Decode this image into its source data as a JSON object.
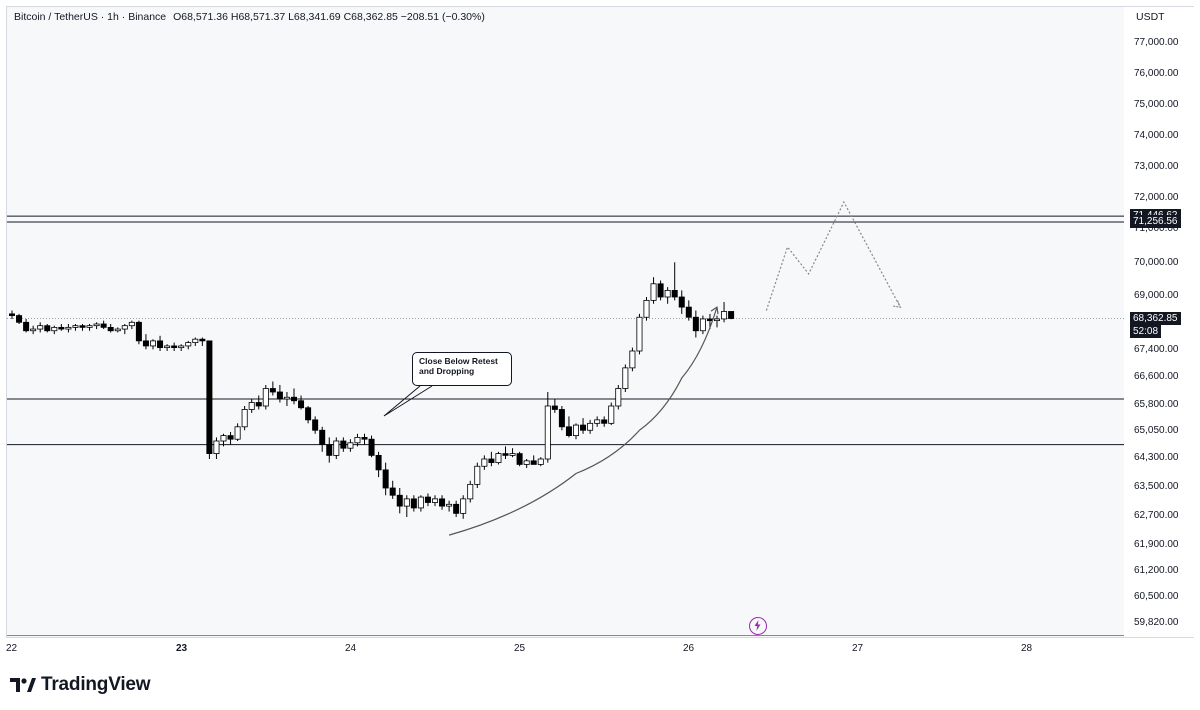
{
  "header": {
    "symbol": "Bitcoin / TetherUS · 1h · Binance",
    "open": "O68,571.36",
    "high": "H68,571.37",
    "low": "L68,341.69",
    "close": "C68,362.85",
    "change": "−208.51 (−0.30%)"
  },
  "price_scale": {
    "currency": "USDT",
    "ticks": [
      "77,000.00",
      "76,000.00",
      "75,000.00",
      "74,000.00",
      "73,000.00",
      "72,000.00",
      "71,000.00",
      "70,000.00",
      "69,000.00",
      "67,400.00",
      "66,600.00",
      "65,800.00",
      "65,050.00",
      "64,300.00",
      "63,500.00",
      "62,700.00",
      "61,900.00",
      "61,200.00",
      "60,500.00",
      "59,820.00"
    ]
  },
  "levels": {
    "resistance_upper": "71,446.62",
    "resistance_lower": "71,256.56",
    "support_upper": 66000,
    "support_lower": 64700
  },
  "last_price": {
    "value": "68,362.85",
    "countdown": "52:08"
  },
  "annotation": {
    "line1": "Close Below Retest",
    "line2": "and Dropping"
  },
  "time_axis": {
    "labels": [
      "22",
      "23",
      "24",
      "25",
      "26",
      "27",
      "28"
    ],
    "bold": [
      "23"
    ]
  },
  "logo": {
    "text": "TradingView"
  },
  "colors": {
    "bull": "#ffffff",
    "bear": "#000000",
    "line": "#131722",
    "dotted": "#888888",
    "accent": "#9c27b0"
  },
  "chart_data": {
    "type": "candlestick",
    "candles": [
      {
        "o": 68500,
        "h": 68600,
        "l": 68350,
        "c": 68450
      },
      {
        "o": 68450,
        "h": 68500,
        "l": 68200,
        "c": 68250
      },
      {
        "o": 68250,
        "h": 68350,
        "l": 67950,
        "c": 68000
      },
      {
        "o": 68000,
        "h": 68150,
        "l": 67900,
        "c": 68050
      },
      {
        "o": 68050,
        "h": 68250,
        "l": 67950,
        "c": 68150
      },
      {
        "o": 68150,
        "h": 68200,
        "l": 67950,
        "c": 68000
      },
      {
        "o": 68000,
        "h": 68150,
        "l": 67900,
        "c": 68100
      },
      {
        "o": 68100,
        "h": 68200,
        "l": 68000,
        "c": 68050
      },
      {
        "o": 68050,
        "h": 68200,
        "l": 67950,
        "c": 68100
      },
      {
        "o": 68100,
        "h": 68200,
        "l": 68000,
        "c": 68150
      },
      {
        "o": 68150,
        "h": 68200,
        "l": 68000,
        "c": 68100
      },
      {
        "o": 68100,
        "h": 68200,
        "l": 68000,
        "c": 68150
      },
      {
        "o": 68150,
        "h": 68250,
        "l": 68050,
        "c": 68200
      },
      {
        "o": 68200,
        "h": 68300,
        "l": 68050,
        "c": 68100
      },
      {
        "o": 68100,
        "h": 68200,
        "l": 67950,
        "c": 68000
      },
      {
        "o": 68000,
        "h": 68100,
        "l": 67950,
        "c": 68050
      },
      {
        "o": 68050,
        "h": 68200,
        "l": 67900,
        "c": 68150
      },
      {
        "o": 68150,
        "h": 68300,
        "l": 68050,
        "c": 68250
      },
      {
        "o": 68250,
        "h": 68300,
        "l": 67600,
        "c": 67700
      },
      {
        "o": 67700,
        "h": 67900,
        "l": 67450,
        "c": 67550
      },
      {
        "o": 67550,
        "h": 67750,
        "l": 67450,
        "c": 67700
      },
      {
        "o": 67700,
        "h": 67850,
        "l": 67400,
        "c": 67500
      },
      {
        "o": 67500,
        "h": 67600,
        "l": 67400,
        "c": 67550
      },
      {
        "o": 67550,
        "h": 67650,
        "l": 67400,
        "c": 67500
      },
      {
        "o": 67500,
        "h": 67600,
        "l": 67400,
        "c": 67550
      },
      {
        "o": 67550,
        "h": 67700,
        "l": 67450,
        "c": 67650
      },
      {
        "o": 67650,
        "h": 67800,
        "l": 67550,
        "c": 67750
      },
      {
        "o": 67750,
        "h": 67800,
        "l": 67550,
        "c": 67700
      },
      {
        "o": 67700,
        "h": 67700,
        "l": 64300,
        "c": 64450
      },
      {
        "o": 64450,
        "h": 64900,
        "l": 64300,
        "c": 64800
      },
      {
        "o": 64800,
        "h": 65000,
        "l": 64650,
        "c": 64950
      },
      {
        "o": 64950,
        "h": 65050,
        "l": 64700,
        "c": 64850
      },
      {
        "o": 64850,
        "h": 65300,
        "l": 64800,
        "c": 65200
      },
      {
        "o": 65200,
        "h": 65800,
        "l": 65100,
        "c": 65700
      },
      {
        "o": 65700,
        "h": 66000,
        "l": 65600,
        "c": 65900
      },
      {
        "o": 65900,
        "h": 66100,
        "l": 65700,
        "c": 65800
      },
      {
        "o": 65800,
        "h": 66400,
        "l": 65700,
        "c": 66300
      },
      {
        "o": 66300,
        "h": 66500,
        "l": 66100,
        "c": 66200
      },
      {
        "o": 66200,
        "h": 66400,
        "l": 65900,
        "c": 66000
      },
      {
        "o": 66000,
        "h": 66200,
        "l": 65800,
        "c": 66050
      },
      {
        "o": 66050,
        "h": 66300,
        "l": 65850,
        "c": 65950
      },
      {
        "o": 65950,
        "h": 66100,
        "l": 65700,
        "c": 65750
      },
      {
        "o": 65750,
        "h": 65800,
        "l": 65300,
        "c": 65400
      },
      {
        "o": 65400,
        "h": 65500,
        "l": 65000,
        "c": 65100
      },
      {
        "o": 65100,
        "h": 65200,
        "l": 64500,
        "c": 64700
      },
      {
        "o": 64700,
        "h": 64900,
        "l": 64200,
        "c": 64400
      },
      {
        "o": 64400,
        "h": 64900,
        "l": 64300,
        "c": 64800
      },
      {
        "o": 64800,
        "h": 64900,
        "l": 64500,
        "c": 64600
      },
      {
        "o": 64600,
        "h": 64850,
        "l": 64500,
        "c": 64750
      },
      {
        "o": 64750,
        "h": 65000,
        "l": 64650,
        "c": 64900
      },
      {
        "o": 64900,
        "h": 65000,
        "l": 64700,
        "c": 64850
      },
      {
        "o": 64850,
        "h": 64950,
        "l": 64350,
        "c": 64400
      },
      {
        "o": 64400,
        "h": 64500,
        "l": 63800,
        "c": 64000
      },
      {
        "o": 64000,
        "h": 64200,
        "l": 63300,
        "c": 63500
      },
      {
        "o": 63500,
        "h": 63700,
        "l": 63200,
        "c": 63300
      },
      {
        "o": 63300,
        "h": 63500,
        "l": 62800,
        "c": 63000
      },
      {
        "o": 63000,
        "h": 63300,
        "l": 62700,
        "c": 63200
      },
      {
        "o": 63200,
        "h": 63300,
        "l": 62850,
        "c": 62950
      },
      {
        "o": 62950,
        "h": 63300,
        "l": 62850,
        "c": 63250
      },
      {
        "o": 63250,
        "h": 63350,
        "l": 63000,
        "c": 63100
      },
      {
        "o": 63100,
        "h": 63300,
        "l": 63000,
        "c": 63200
      },
      {
        "o": 63200,
        "h": 63300,
        "l": 62900,
        "c": 63000
      },
      {
        "o": 63000,
        "h": 63150,
        "l": 62850,
        "c": 63050
      },
      {
        "o": 63050,
        "h": 63150,
        "l": 62700,
        "c": 62800
      },
      {
        "o": 62800,
        "h": 63300,
        "l": 62650,
        "c": 63200
      },
      {
        "o": 63200,
        "h": 63700,
        "l": 63100,
        "c": 63600
      },
      {
        "o": 63600,
        "h": 64200,
        "l": 63500,
        "c": 64100
      },
      {
        "o": 64100,
        "h": 64400,
        "l": 64000,
        "c": 64300
      },
      {
        "o": 64300,
        "h": 64500,
        "l": 64100,
        "c": 64200
      },
      {
        "o": 64200,
        "h": 64500,
        "l": 64150,
        "c": 64450
      },
      {
        "o": 64450,
        "h": 64650,
        "l": 64300,
        "c": 64400
      },
      {
        "o": 64400,
        "h": 64600,
        "l": 64350,
        "c": 64450
      },
      {
        "o": 64450,
        "h": 64500,
        "l": 64100,
        "c": 64150
      },
      {
        "o": 64150,
        "h": 64300,
        "l": 64050,
        "c": 64250
      },
      {
        "o": 64250,
        "h": 64400,
        "l": 64150,
        "c": 64150
      },
      {
        "o": 64150,
        "h": 64350,
        "l": 64100,
        "c": 64300
      },
      {
        "o": 64300,
        "h": 66200,
        "l": 64200,
        "c": 65800
      },
      {
        "o": 65800,
        "h": 66000,
        "l": 65600,
        "c": 65700
      },
      {
        "o": 65700,
        "h": 65800,
        "l": 65100,
        "c": 65200
      },
      {
        "o": 65200,
        "h": 65500,
        "l": 64900,
        "c": 64950
      },
      {
        "o": 64950,
        "h": 65300,
        "l": 64850,
        "c": 65250
      },
      {
        "o": 65250,
        "h": 65450,
        "l": 65000,
        "c": 65100
      },
      {
        "o": 65100,
        "h": 65400,
        "l": 65000,
        "c": 65300
      },
      {
        "o": 65300,
        "h": 65500,
        "l": 65200,
        "c": 65400
      },
      {
        "o": 65400,
        "h": 65500,
        "l": 65200,
        "c": 65300
      },
      {
        "o": 65300,
        "h": 65900,
        "l": 65250,
        "c": 65800
      },
      {
        "o": 65800,
        "h": 66400,
        "l": 65700,
        "c": 66300
      },
      {
        "o": 66300,
        "h": 67000,
        "l": 66200,
        "c": 66900
      },
      {
        "o": 66900,
        "h": 67500,
        "l": 66800,
        "c": 67400
      },
      {
        "o": 67400,
        "h": 68500,
        "l": 67300,
        "c": 68400
      },
      {
        "o": 68400,
        "h": 69000,
        "l": 68300,
        "c": 68900
      },
      {
        "o": 68900,
        "h": 69600,
        "l": 68800,
        "c": 69400
      },
      {
        "o": 69400,
        "h": 69500,
        "l": 68900,
        "c": 69000
      },
      {
        "o": 69000,
        "h": 69300,
        "l": 68800,
        "c": 69200
      },
      {
        "o": 69200,
        "h": 70050,
        "l": 68900,
        "c": 69000
      },
      {
        "o": 69000,
        "h": 69200,
        "l": 68500,
        "c": 68700
      },
      {
        "o": 68700,
        "h": 68900,
        "l": 68300,
        "c": 68400
      },
      {
        "o": 68400,
        "h": 68600,
        "l": 67800,
        "c": 68000
      },
      {
        "o": 68000,
        "h": 68450,
        "l": 67900,
        "c": 68350
      },
      {
        "o": 68350,
        "h": 68500,
        "l": 68050,
        "c": 68300
      },
      {
        "o": 68300,
        "h": 68450,
        "l": 68100,
        "c": 68350
      },
      {
        "o": 68350,
        "h": 68850,
        "l": 68250,
        "c": 68571
      },
      {
        "o": 68571,
        "h": 68571,
        "l": 68341,
        "c": 68362
      }
    ],
    "projection": [
      {
        "i": 107,
        "p": 68600
      },
      {
        "i": 110,
        "p": 70500
      },
      {
        "i": 113,
        "p": 69700
      },
      {
        "i": 118,
        "p": 71900
      },
      {
        "i": 126,
        "p": 68700
      }
    ],
    "trend_curve": [
      {
        "i": 62,
        "p": 62200
      },
      {
        "i": 80,
        "p": 63900
      },
      {
        "i": 89,
        "p": 65100
      },
      {
        "i": 95,
        "p": 66600
      },
      {
        "i": 100,
        "p": 68700
      }
    ]
  }
}
